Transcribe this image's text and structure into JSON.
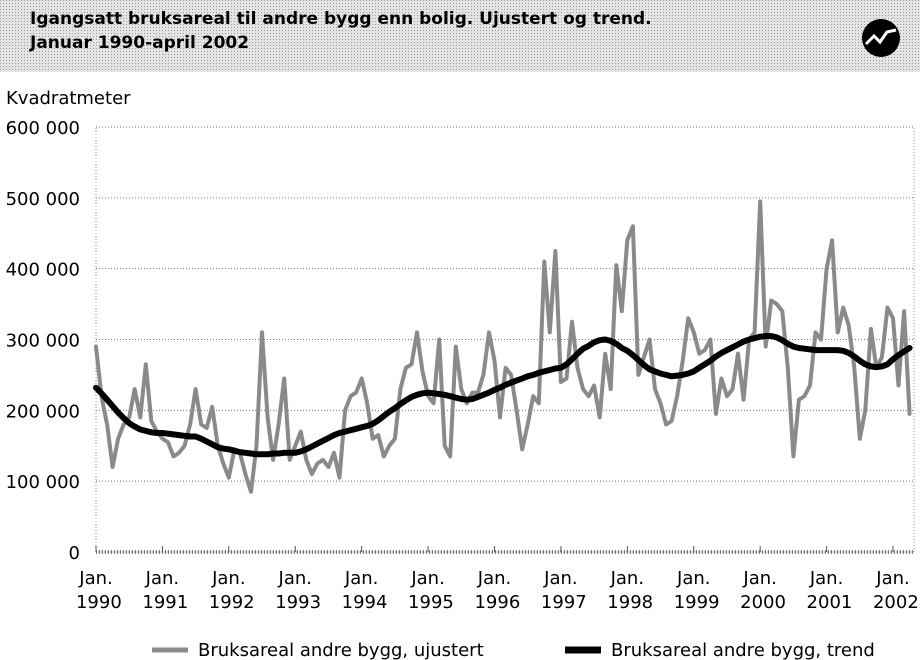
{
  "chart_data": {
    "type": "line",
    "title": "Igangsatt bruksareal til andre bygg enn bolig. Ujustert og trend.",
    "subtitle": "Januar 1990-april 2002",
    "y_label": "Kvadratmeter",
    "x": [
      "1990-01",
      "1990-02",
      "1990-03",
      "1990-04",
      "1990-05",
      "1990-06",
      "1990-07",
      "1990-08",
      "1990-09",
      "1990-10",
      "1990-11",
      "1990-12",
      "1991-01",
      "1991-02",
      "1991-03",
      "1991-04",
      "1991-05",
      "1991-06",
      "1991-07",
      "1991-08",
      "1991-09",
      "1991-10",
      "1991-11",
      "1991-12",
      "1992-01",
      "1992-02",
      "1992-03",
      "1992-04",
      "1992-05",
      "1992-06",
      "1992-07",
      "1992-08",
      "1992-09",
      "1992-10",
      "1992-11",
      "1992-12",
      "1993-01",
      "1993-02",
      "1993-03",
      "1993-04",
      "1993-05",
      "1993-06",
      "1993-07",
      "1993-08",
      "1993-09",
      "1993-10",
      "1993-11",
      "1993-12",
      "1994-01",
      "1994-02",
      "1994-03",
      "1994-04",
      "1994-05",
      "1994-06",
      "1994-07",
      "1994-08",
      "1994-09",
      "1994-10",
      "1994-11",
      "1994-12",
      "1995-01",
      "1995-02",
      "1995-03",
      "1995-04",
      "1995-05",
      "1995-06",
      "1995-07",
      "1995-08",
      "1995-09",
      "1995-10",
      "1995-11",
      "1995-12",
      "1996-01",
      "1996-02",
      "1996-03",
      "1996-04",
      "1996-05",
      "1996-06",
      "1996-07",
      "1996-08",
      "1996-09",
      "1996-10",
      "1996-11",
      "1996-12",
      "1997-01",
      "1997-02",
      "1997-03",
      "1997-04",
      "1997-05",
      "1997-06",
      "1997-07",
      "1997-08",
      "1997-09",
      "1997-10",
      "1997-11",
      "1997-12",
      "1998-01",
      "1998-02",
      "1998-03",
      "1998-04",
      "1998-05",
      "1998-06",
      "1998-07",
      "1998-08",
      "1998-09",
      "1998-10",
      "1998-11",
      "1998-12",
      "1999-01",
      "1999-02",
      "1999-03",
      "1999-04",
      "1999-05",
      "1999-06",
      "1999-07",
      "1999-08",
      "1999-09",
      "1999-10",
      "1999-11",
      "1999-12",
      "2000-01",
      "2000-02",
      "2000-03",
      "2000-04",
      "2000-05",
      "2000-06",
      "2000-07",
      "2000-08",
      "2000-09",
      "2000-10",
      "2000-11",
      "2000-12",
      "2001-01",
      "2001-02",
      "2001-03",
      "2001-04",
      "2001-05",
      "2001-06",
      "2001-07",
      "2001-08",
      "2001-09",
      "2001-10",
      "2001-11",
      "2001-12",
      "2002-01",
      "2002-02",
      "2002-03",
      "2002-04"
    ],
    "series": [
      {
        "name": "Bruksareal andre bygg, ujustert",
        "color": "#8a8a8a",
        "values": [
          290000,
          220000,
          180000,
          120000,
          160000,
          180000,
          190000,
          230000,
          190000,
          265000,
          185000,
          170000,
          160000,
          155000,
          135000,
          140000,
          150000,
          180000,
          230000,
          180000,
          175000,
          205000,
          150000,
          125000,
          105000,
          145000,
          140000,
          110000,
          85000,
          150000,
          310000,
          190000,
          130000,
          180000,
          245000,
          130000,
          150000,
          170000,
          130000,
          110000,
          125000,
          130000,
          120000,
          140000,
          105000,
          200000,
          220000,
          225000,
          245000,
          210000,
          160000,
          165000,
          135000,
          150000,
          160000,
          230000,
          260000,
          265000,
          310000,
          255000,
          220000,
          210000,
          300000,
          150000,
          135000,
          290000,
          230000,
          210000,
          225000,
          225000,
          250000,
          310000,
          270000,
          190000,
          260000,
          250000,
          200000,
          145000,
          180000,
          220000,
          210000,
          410000,
          310000,
          425000,
          240000,
          245000,
          325000,
          260000,
          230000,
          220000,
          235000,
          190000,
          280000,
          230000,
          405000,
          340000,
          440000,
          460000,
          250000,
          275000,
          300000,
          230000,
          210000,
          180000,
          185000,
          220000,
          270000,
          330000,
          310000,
          280000,
          285000,
          300000,
          195000,
          245000,
          220000,
          230000,
          280000,
          215000,
          300000,
          310000,
          495000,
          290000,
          355000,
          350000,
          340000,
          260000,
          135000,
          215000,
          220000,
          235000,
          310000,
          300000,
          400000,
          440000,
          310000,
          345000,
          320000,
          260000,
          160000,
          200000,
          315000,
          260000,
          275000,
          345000,
          330000,
          235000,
          340000,
          195000
        ]
      },
      {
        "name": "Bruksareal andre bygg, trend",
        "color": "#000000",
        "values": [
          232000,
          224000,
          215000,
          206000,
          197000,
          189000,
          182000,
          177000,
          173000,
          171000,
          169000,
          168000,
          168000,
          167000,
          166000,
          165000,
          164000,
          163000,
          163000,
          160000,
          156000,
          152000,
          148000,
          146000,
          145000,
          143000,
          141000,
          140000,
          139000,
          138000,
          138000,
          138000,
          139000,
          139000,
          140000,
          140000,
          140000,
          142000,
          145000,
          149000,
          153000,
          157000,
          161000,
          165000,
          168000,
          170000,
          172000,
          174000,
          176000,
          178000,
          181000,
          186000,
          192000,
          198000,
          203000,
          209000,
          214000,
          219000,
          222000,
          224000,
          225000,
          224000,
          223000,
          222000,
          220000,
          218000,
          216000,
          215000,
          216000,
          219000,
          222000,
          225000,
          229000,
          232000,
          236000,
          239000,
          242000,
          245000,
          248000,
          250000,
          253000,
          255000,
          257000,
          259000,
          260000,
          265000,
          272000,
          280000,
          287000,
          291000,
          296000,
          299000,
          300000,
          298000,
          294000,
          288000,
          284000,
          278000,
          271000,
          264000,
          258000,
          255000,
          252000,
          250000,
          248000,
          249000,
          250000,
          252000,
          255000,
          260000,
          265000,
          270000,
          276000,
          281000,
          285000,
          289000,
          293000,
          297000,
          300000,
          302000,
          304000,
          305000,
          305000,
          303000,
          299000,
          294000,
          290000,
          288000,
          287000,
          286000,
          285000,
          285000,
          285000,
          285000,
          285000,
          284000,
          281000,
          276000,
          270000,
          265000,
          262000,
          261000,
          262000,
          265000,
          272000,
          278000,
          283000,
          288000
        ]
      }
    ],
    "xticks": [
      {
        "value": "1990-01",
        "label": "Jan. 1990"
      },
      {
        "value": "1991-01",
        "label": "Jan. 1991"
      },
      {
        "value": "1992-01",
        "label": "Jan. 1992"
      },
      {
        "value": "1993-01",
        "label": "Jan. 1993"
      },
      {
        "value": "1994-01",
        "label": "Jan. 1994"
      },
      {
        "value": "1995-01",
        "label": "Jan. 1995"
      },
      {
        "value": "1996-01",
        "label": "Jan. 1996"
      },
      {
        "value": "1997-01",
        "label": "Jan. 1997"
      },
      {
        "value": "1998-01",
        "label": "Jan. 1998"
      },
      {
        "value": "1999-01",
        "label": "Jan. 1999"
      },
      {
        "value": "2000-01",
        "label": "Jan. 2000"
      },
      {
        "value": "2001-01",
        "label": "Jan. 2001"
      },
      {
        "value": "2002-01",
        "label": "Jan. 2002"
      }
    ],
    "ylim": [
      0,
      600000
    ],
    "yticks": [
      0,
      {
        "value": 100000,
        "label": "100 000"
      },
      {
        "value": 200000,
        "label": "200 000"
      },
      {
        "value": 300000,
        "label": "300 000"
      },
      {
        "value": 400000,
        "label": "400 000"
      },
      {
        "value": 500000,
        "label": "500 000"
      },
      {
        "value": 600000,
        "label": "600 000"
      }
    ],
    "grid": true
  }
}
